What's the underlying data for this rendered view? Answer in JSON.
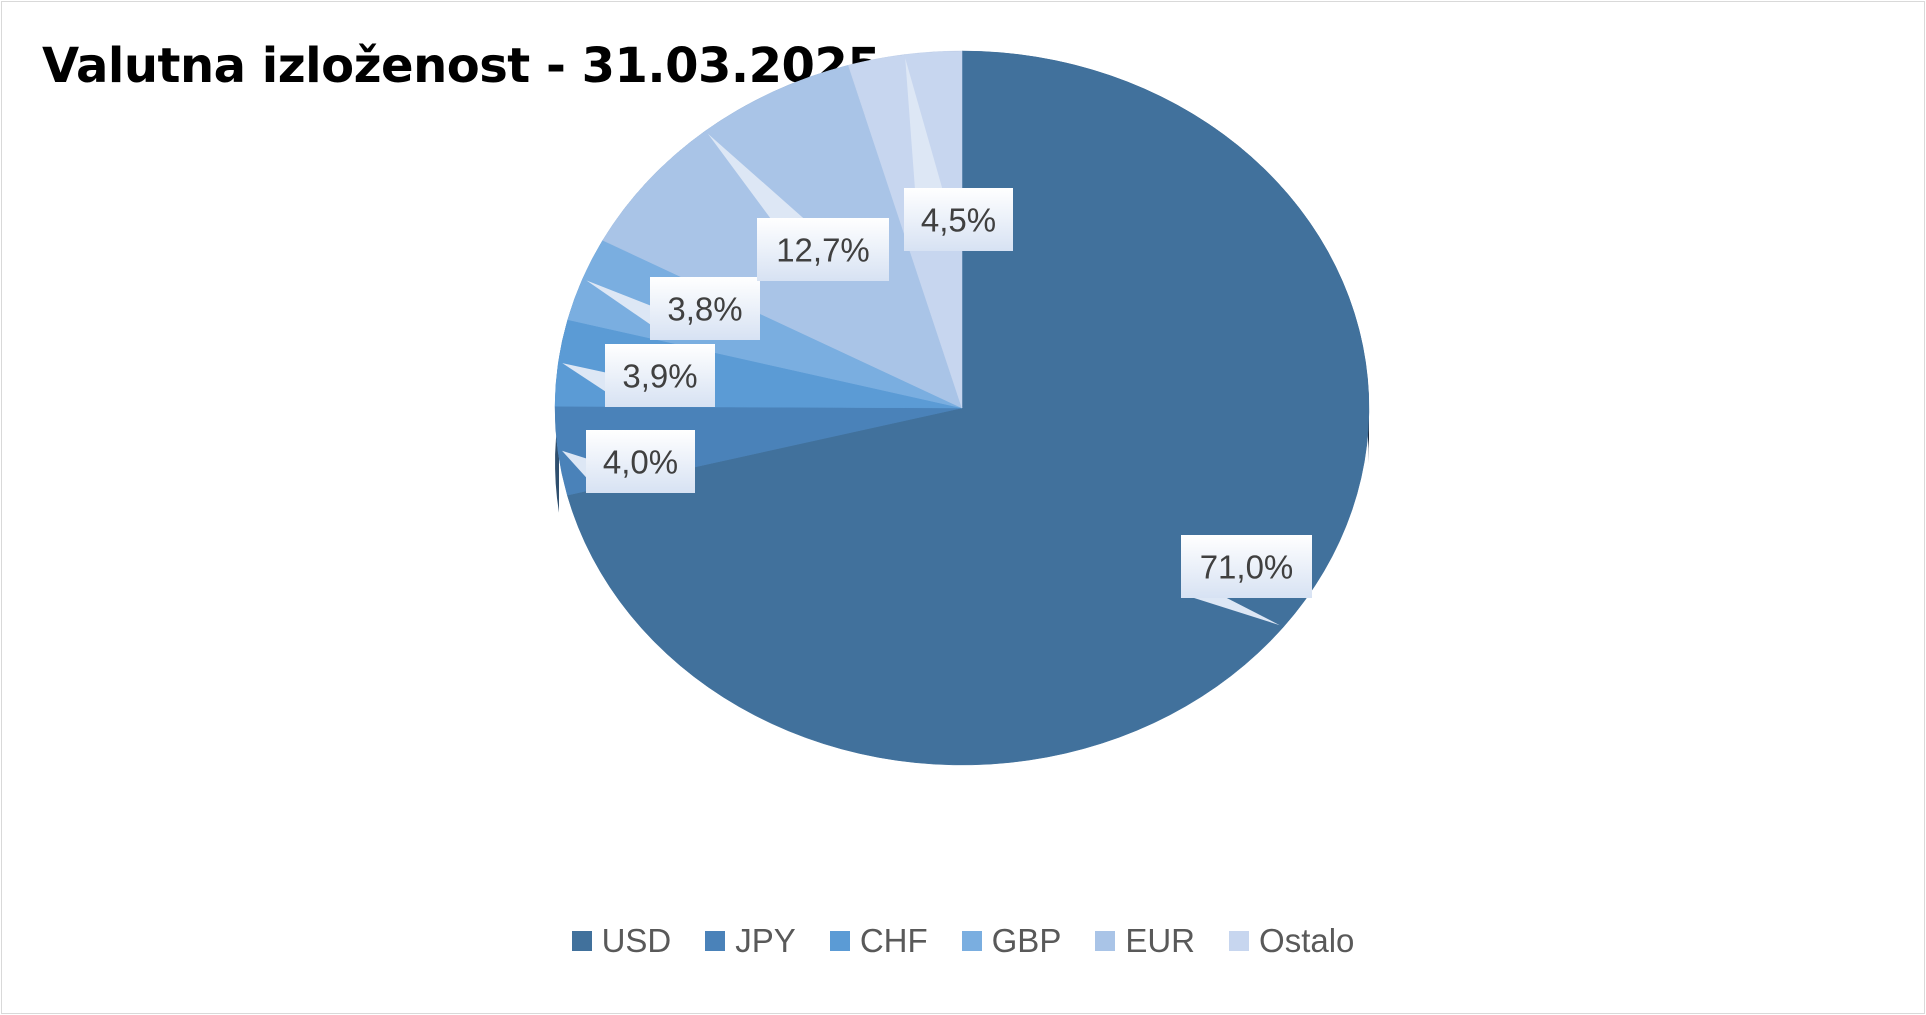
{
  "chart_data": {
    "type": "pie",
    "title": "Valutna izloženost - 31.03.2025.",
    "categories": [
      "USD",
      "JPY",
      "CHF",
      "GBP",
      "EUR",
      "Ostalo"
    ],
    "values": [
      71.0,
      4.0,
      3.9,
      3.8,
      12.7,
      4.5
    ],
    "labels": [
      "71,0%",
      "4,0%",
      "3,9%",
      "3,8%",
      "12,7%",
      "4,5%"
    ],
    "colors": [
      "#41719c",
      "#4a82b9",
      "#5b9bd5",
      "#7aaee0",
      "#a9c4e7",
      "#c7d6ef"
    ],
    "legend_position": "bottom",
    "style": "3d"
  }
}
